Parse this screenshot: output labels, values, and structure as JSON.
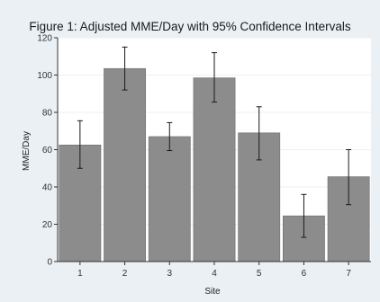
{
  "chart_data": {
    "type": "bar",
    "title": "Figure 1: Adjusted MME/Day with 95% Confidence Intervals",
    "xlabel": "Site",
    "ylabel": "MME/Day",
    "categories": [
      "1",
      "2",
      "3",
      "4",
      "5",
      "6",
      "7"
    ],
    "values": [
      62.5,
      103.5,
      67,
      98.5,
      69,
      24.5,
      45.5
    ],
    "ci_lower": [
      50,
      92,
      59.5,
      85.5,
      54.5,
      13,
      30.5
    ],
    "ci_upper": [
      75.5,
      115,
      74.5,
      112,
      83,
      36,
      60
    ],
    "ylim": [
      0,
      120
    ],
    "yticks": [
      "0",
      "20",
      "40",
      "60",
      "80",
      "100",
      "120"
    ],
    "grid": true,
    "colors": {
      "background": "#eaf0f4",
      "plot_background": "#ffffff",
      "bar_fill": "#8c8c8c",
      "bar_edge": "#6e6e6e",
      "error_bar": "#1a1a1a",
      "gridline": "#eaf0f4"
    }
  }
}
